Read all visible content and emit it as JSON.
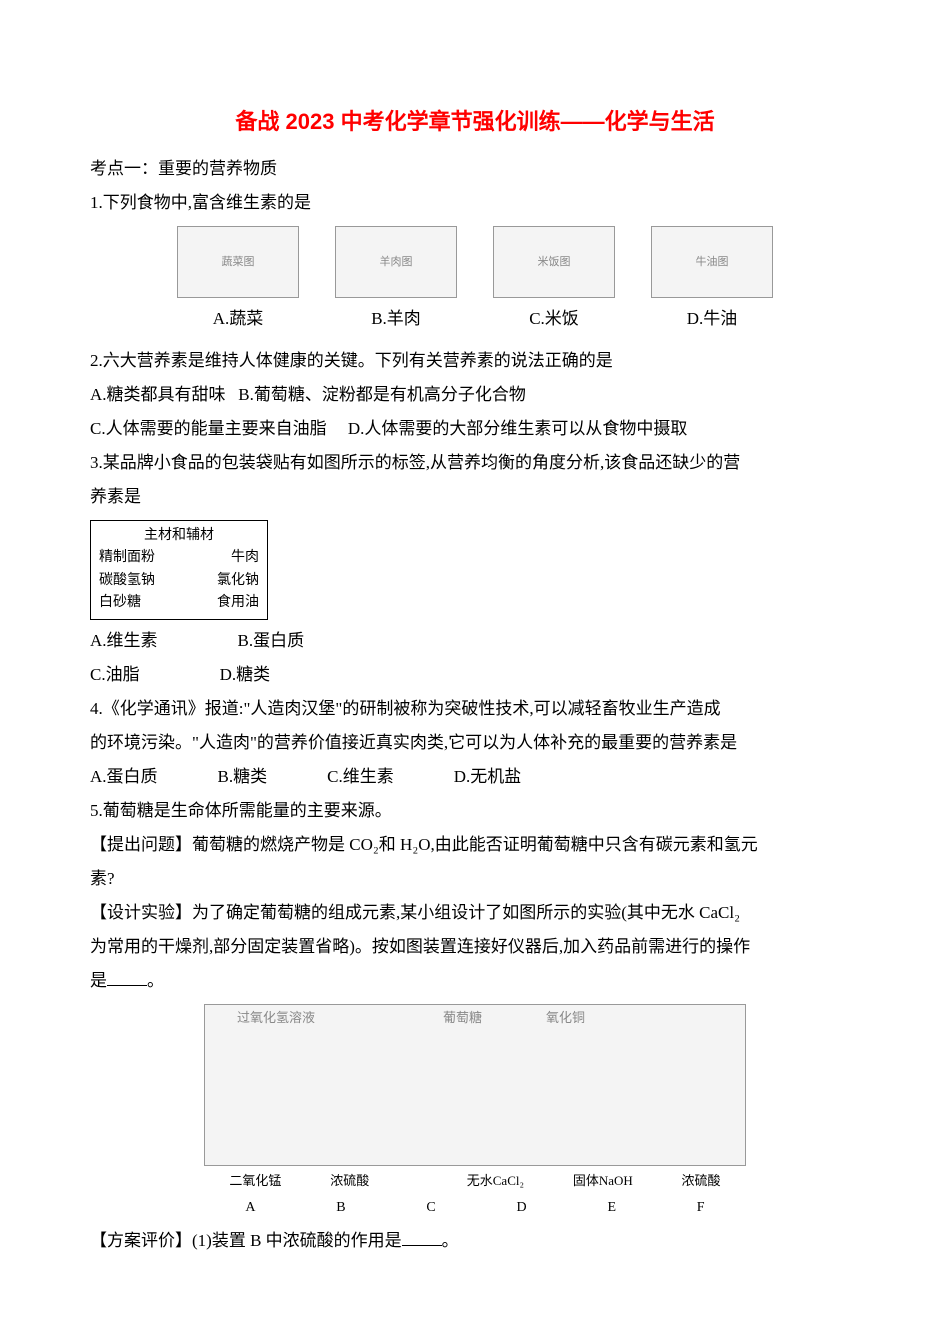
{
  "title": "备战 2023 中考化学章节强化训练——化学与生活",
  "section1_heading": "考点一：重要的营养物质",
  "q1": {
    "stem": "1.下列食物中,富含维生素的是",
    "opts": {
      "A": {
        "img": "蔬菜图",
        "label": "A.蔬菜"
      },
      "B": {
        "img": "羊肉图",
        "label": "B.羊肉"
      },
      "C": {
        "img": "米饭图",
        "label": "C.米饭"
      },
      "D": {
        "img": "牛油图",
        "label": "D.牛油"
      }
    }
  },
  "q2": {
    "stem": "2.六大营养素是维持人体健康的关键。下列有关营养素的说法正确的是",
    "A": "A.糖类都具有甜味",
    "B": "B.葡萄糖、淀粉都是有机高分子化合物",
    "C": "C.人体需要的能量主要来自油脂",
    "D": "D.人体需要的大部分维生素可以从食物中摄取"
  },
  "q3": {
    "stem1": "3.某品牌小食品的包装袋贴有如图所示的标签,从营养均衡的角度分析,该食品还缺少的营",
    "stem2": "养素是",
    "box": {
      "header": "主材和辅材",
      "r1a": "精制面粉",
      "r1b": "牛肉",
      "r2a": "碳酸氢钠",
      "r2b": "氯化钠",
      "r3a": "白砂糖",
      "r3b": "食用油"
    },
    "A": "A.维生素",
    "B": "B.蛋白质",
    "C": "C.油脂",
    "D": "D.糖类"
  },
  "q4": {
    "stem1": "4.《化学通讯》报道:\"人造肉汉堡\"的研制被称为突破性技术,可以减轻畜牧业生产造成",
    "stem2": "的环境污染。\"人造肉\"的营养价值接近真实肉类,它可以为人体补充的最重要的营养素是",
    "A": "A.蛋白质",
    "B": "B.糖类",
    "C": "C.维生素",
    "D": "D.无机盐"
  },
  "q5": {
    "stem": "5.葡萄糖是生命体所需能量的主要来源。",
    "propose_l1": "【提出问题】葡萄糖的燃烧产物是 CO₂和 H₂O,由此能否证明葡萄糖中只含有碳元素和氢元",
    "propose_l2": "素?",
    "design_l1": "【设计实验】为了确定葡萄糖的组成元素,某小组设计了如图所示的实验(其中无水 CaCl₂",
    "design_l2": "为常用的干燥剂,部分固定装置省略)。按如图装置连接好仪器后,加入药品前需进行的操作",
    "design_l3_pre": "是",
    "design_l3_post": "。",
    "diagram": {
      "alt": "实验装置示意图",
      "top": {
        "a": "过氧化氢溶液",
        "b": "葡萄糖",
        "c": "氧化铜"
      },
      "mid": {
        "a": "二氧化锰",
        "b": "浓硫酸",
        "c": "",
        "d": "无水CaCl₂",
        "e": "固体NaOH",
        "f": "浓硫酸"
      },
      "bot": {
        "A": "A",
        "B": "B",
        "C": "C",
        "D": "D",
        "E": "E",
        "F": "F"
      }
    },
    "eval_pre": "【方案评价】(1)装置 B 中浓硫酸的作用是",
    "eval_post": "。"
  }
}
